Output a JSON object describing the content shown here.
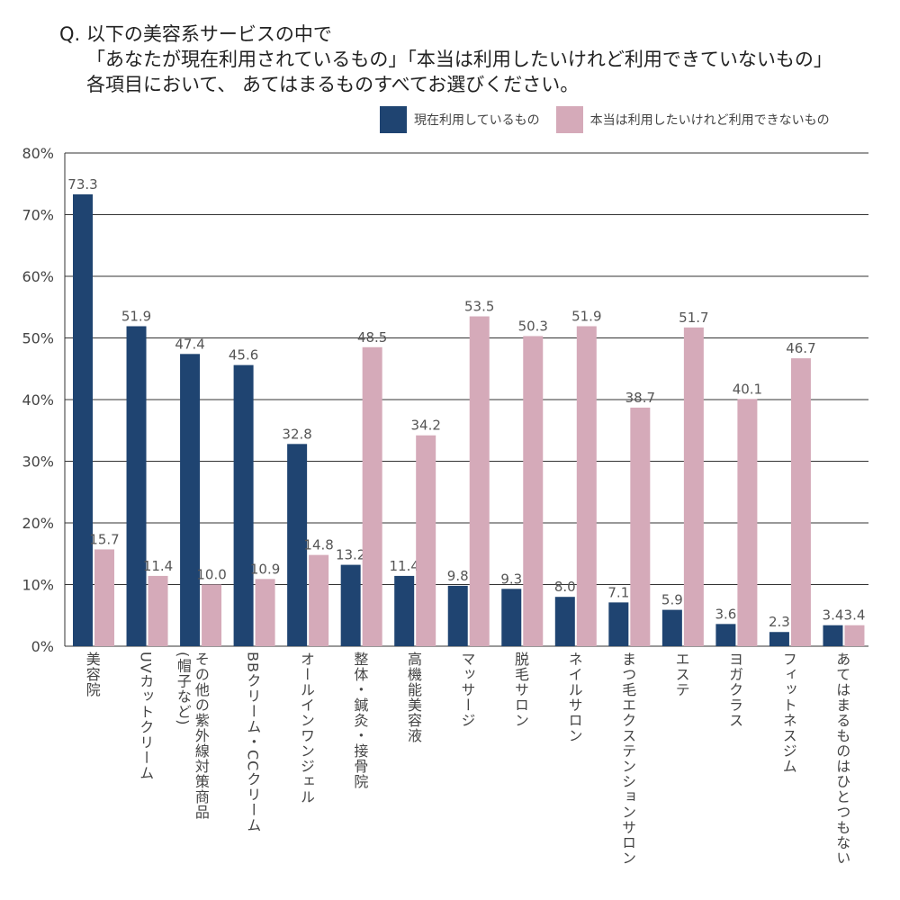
{
  "title": {
    "line1": "Q. 以下の美容系サービスの中で",
    "line2": "「あなたが現在利用されているもの」「本当は利用したいけれど利用できていないもの」",
    "line3": "各項目において、 あてはまるものすべてお選びください。"
  },
  "chart_data": {
    "type": "bar",
    "title": "Q. 以下の美容系サービスの中で「あなたが現在利用されているもの」「本当は利用したいけれど利用できていないもの」各項目において、 あてはまるものすべてお選びください。",
    "categories": [
      "美容院",
      "UVカットクリーム",
      "その他の紫外線対策商品\n(帽子など)",
      "BBクリーム・CCクリーム",
      "オールインワンジェル",
      "整体・鍼灸・接骨院",
      "高機能美容液",
      "マッサージ",
      "脱毛サロン",
      "ネイルサロン",
      "まつ毛エクステンションサロン",
      "エステ",
      "ヨガクラス",
      "フィットネスジム",
      "あてはまるものはひとつもない"
    ],
    "series": [
      {
        "name": "現在利用しているもの",
        "color": "#1f4471",
        "values": [
          73.3,
          51.9,
          47.4,
          45.6,
          32.8,
          13.2,
          11.4,
          9.8,
          9.3,
          8.0,
          7.1,
          5.9,
          3.6,
          2.3,
          3.4
        ]
      },
      {
        "name": "本当は利用したいけれど利用できないもの",
        "color": "#d5aab9",
        "values": [
          15.7,
          11.4,
          10.0,
          10.9,
          14.8,
          48.5,
          34.2,
          53.5,
          50.3,
          51.9,
          38.7,
          51.7,
          40.1,
          46.7,
          3.4
        ]
      }
    ],
    "yticks": [
      "0%",
      "10%",
      "20%",
      "30%",
      "40%",
      "50%",
      "60%",
      "70%",
      "80%"
    ],
    "ylim": [
      0,
      80
    ],
    "grid": true,
    "legend": "top-right",
    "xlabel": "",
    "ylabel": ""
  }
}
